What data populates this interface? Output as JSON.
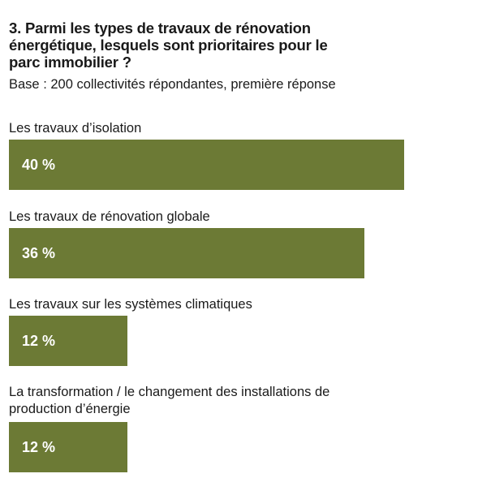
{
  "title": "3. Parmi les types de travaux de rénovation énergétique, lesquels sont prioritaires pour le parc immobilier ?",
  "subtitle": "Base : 200 collectivités répondantes, première réponse",
  "chart_data": {
    "type": "bar",
    "orientation": "horizontal",
    "title": "3. Parmi les types de travaux de rénovation énergétique, lesquels sont prioritaires pour le parc immobilier ?",
    "subtitle": "Base : 200 collectivités répondantes, première réponse",
    "categories": [
      "Les travaux d’isolation",
      "Les travaux de rénovation globale",
      "Les travaux sur les systèmes climatiques",
      "La transformation / le changement des installations de production d’énergie"
    ],
    "values": [
      40,
      36,
      12,
      12
    ],
    "value_labels": [
      "40 %",
      "36 %",
      "12 %",
      "12 %"
    ],
    "unit": "%",
    "bar_color": "#6c7a35",
    "label_color": "#ffffff",
    "grid": false,
    "legend": "none"
  }
}
